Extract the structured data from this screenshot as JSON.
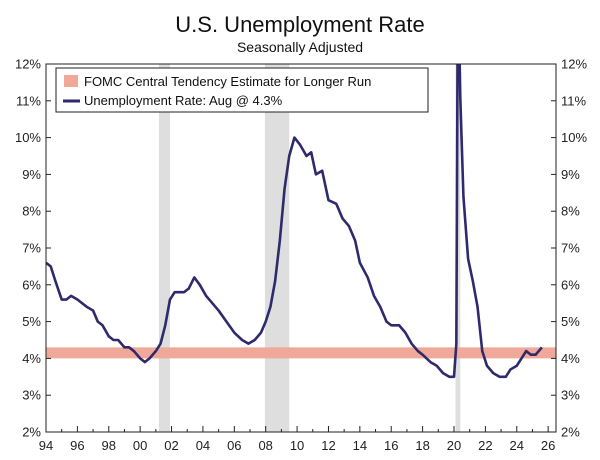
{
  "chart_data": {
    "type": "line",
    "title": "U.S. Unemployment Rate",
    "subtitle": "Seasonally Adjusted",
    "xlabel": "",
    "ylabel": "",
    "xlim": [
      1994,
      2026.5
    ],
    "ylim": [
      2,
      12
    ],
    "x_ticks": [
      "94",
      "96",
      "98",
      "00",
      "02",
      "04",
      "06",
      "08",
      "10",
      "12",
      "14",
      "16",
      "18",
      "20",
      "22",
      "24",
      "26"
    ],
    "y_ticks": [
      "2%",
      "3%",
      "4%",
      "5%",
      "6%",
      "7%",
      "8%",
      "9%",
      "10%",
      "11%",
      "12%"
    ],
    "grid": false,
    "legend_position": "top-left",
    "recessions": [
      {
        "start": 2001.2,
        "end": 2001.9
      },
      {
        "start": 2007.95,
        "end": 2009.5
      },
      {
        "start": 2020.1,
        "end": 2020.4
      }
    ],
    "band": {
      "name": "FOMC Central Tendency Estimate for Longer Run",
      "low": 4.0,
      "high": 4.3,
      "color": "#f0a899"
    },
    "series": [
      {
        "name": "Unemployment Rate: Aug @ 4.3%",
        "color": "#2e2a6b",
        "points": [
          [
            1994.0,
            6.6
          ],
          [
            1994.3,
            6.5
          ],
          [
            1994.6,
            6.1
          ],
          [
            1995.0,
            5.6
          ],
          [
            1995.3,
            5.6
          ],
          [
            1995.6,
            5.7
          ],
          [
            1996.0,
            5.6
          ],
          [
            1996.3,
            5.5
          ],
          [
            1996.6,
            5.4
          ],
          [
            1997.0,
            5.3
          ],
          [
            1997.3,
            5.0
          ],
          [
            1997.6,
            4.9
          ],
          [
            1998.0,
            4.6
          ],
          [
            1998.3,
            4.5
          ],
          [
            1998.6,
            4.5
          ],
          [
            1999.0,
            4.3
          ],
          [
            1999.3,
            4.3
          ],
          [
            1999.6,
            4.2
          ],
          [
            2000.0,
            4.0
          ],
          [
            2000.3,
            3.9
          ],
          [
            2000.6,
            4.0
          ],
          [
            2001.0,
            4.2
          ],
          [
            2001.3,
            4.4
          ],
          [
            2001.6,
            4.9
          ],
          [
            2001.9,
            5.6
          ],
          [
            2002.2,
            5.8
          ],
          [
            2002.5,
            5.8
          ],
          [
            2002.8,
            5.8
          ],
          [
            2003.1,
            5.9
          ],
          [
            2003.45,
            6.2
          ],
          [
            2003.8,
            6.0
          ],
          [
            2004.2,
            5.7
          ],
          [
            2004.6,
            5.5
          ],
          [
            2005.0,
            5.3
          ],
          [
            2005.5,
            5.0
          ],
          [
            2006.0,
            4.7
          ],
          [
            2006.5,
            4.5
          ],
          [
            2006.9,
            4.4
          ],
          [
            2007.3,
            4.5
          ],
          [
            2007.7,
            4.7
          ],
          [
            2008.0,
            5.0
          ],
          [
            2008.3,
            5.4
          ],
          [
            2008.6,
            6.1
          ],
          [
            2008.9,
            7.2
          ],
          [
            2009.2,
            8.6
          ],
          [
            2009.5,
            9.5
          ],
          [
            2009.83,
            10.0
          ],
          [
            2010.2,
            9.8
          ],
          [
            2010.6,
            9.5
          ],
          [
            2010.9,
            9.6
          ],
          [
            2011.2,
            9.0
          ],
          [
            2011.6,
            9.1
          ],
          [
            2012.0,
            8.3
          ],
          [
            2012.5,
            8.2
          ],
          [
            2012.9,
            7.8
          ],
          [
            2013.3,
            7.6
          ],
          [
            2013.7,
            7.2
          ],
          [
            2014.0,
            6.6
          ],
          [
            2014.5,
            6.2
          ],
          [
            2014.9,
            5.7
          ],
          [
            2015.3,
            5.4
          ],
          [
            2015.7,
            5.0
          ],
          [
            2016.0,
            4.9
          ],
          [
            2016.5,
            4.9
          ],
          [
            2016.9,
            4.7
          ],
          [
            2017.3,
            4.4
          ],
          [
            2017.7,
            4.2
          ],
          [
            2018.0,
            4.1
          ],
          [
            2018.5,
            3.9
          ],
          [
            2018.9,
            3.8
          ],
          [
            2019.3,
            3.6
          ],
          [
            2019.7,
            3.5
          ],
          [
            2020.0,
            3.5
          ],
          [
            2020.15,
            4.4
          ],
          [
            2020.25,
            14.7
          ],
          [
            2020.4,
            11.1
          ],
          [
            2020.6,
            8.4
          ],
          [
            2020.9,
            6.7
          ],
          [
            2021.2,
            6.1
          ],
          [
            2021.5,
            5.4
          ],
          [
            2021.8,
            4.2
          ],
          [
            2022.1,
            3.8
          ],
          [
            2022.5,
            3.6
          ],
          [
            2022.9,
            3.5
          ],
          [
            2023.3,
            3.5
          ],
          [
            2023.6,
            3.7
          ],
          [
            2024.0,
            3.8
          ],
          [
            2024.3,
            4.0
          ],
          [
            2024.6,
            4.2
          ],
          [
            2024.9,
            4.1
          ],
          [
            2025.2,
            4.1
          ],
          [
            2025.4,
            4.2
          ],
          [
            2025.6,
            4.3
          ]
        ]
      }
    ]
  }
}
